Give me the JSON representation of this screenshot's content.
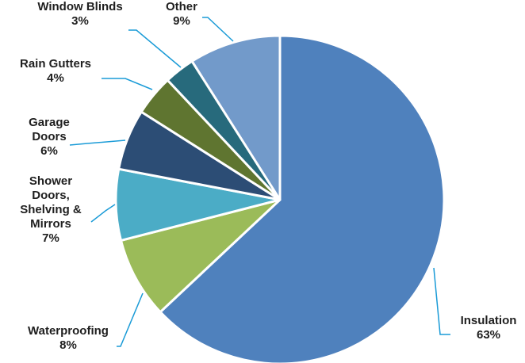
{
  "chart_data": {
    "type": "pie",
    "categories": [
      "Insulation",
      "Waterproofing",
      "Shower Doors, Shelving & Mirrors",
      "Garage Doors",
      "Rain Gutters",
      "Window Blinds",
      "Other"
    ],
    "values": [
      63,
      8,
      7,
      6,
      4,
      3,
      9
    ],
    "value_labels": [
      "63%",
      "8%",
      "7%",
      "6%",
      "4%",
      "3%",
      "9%"
    ],
    "colors": [
      "#4f81bd",
      "#9bbb59",
      "#4bacc6",
      "#2c4d75",
      "#5f7530",
      "#276a7c",
      "#729aca"
    ],
    "leader_color": "#1a9bd7",
    "start": "12 o'clock",
    "direction": "clockwise",
    "legend": "none",
    "labels": [
      {
        "lines": [
          "Insulation"
        ],
        "pct": "63%"
      },
      {
        "lines": [
          "Waterproofing"
        ],
        "pct": "8%"
      },
      {
        "lines": [
          "Shower",
          "Doors,",
          "Shelving &",
          "Mirrors"
        ],
        "pct": "7%"
      },
      {
        "lines": [
          "Garage",
          "Doors"
        ],
        "pct": "6%"
      },
      {
        "lines": [
          "Rain Gutters"
        ],
        "pct": "4%"
      },
      {
        "lines": [
          "Window Blinds"
        ],
        "pct": "3%"
      },
      {
        "lines": [
          "Other"
        ],
        "pct": "9%"
      }
    ]
  }
}
